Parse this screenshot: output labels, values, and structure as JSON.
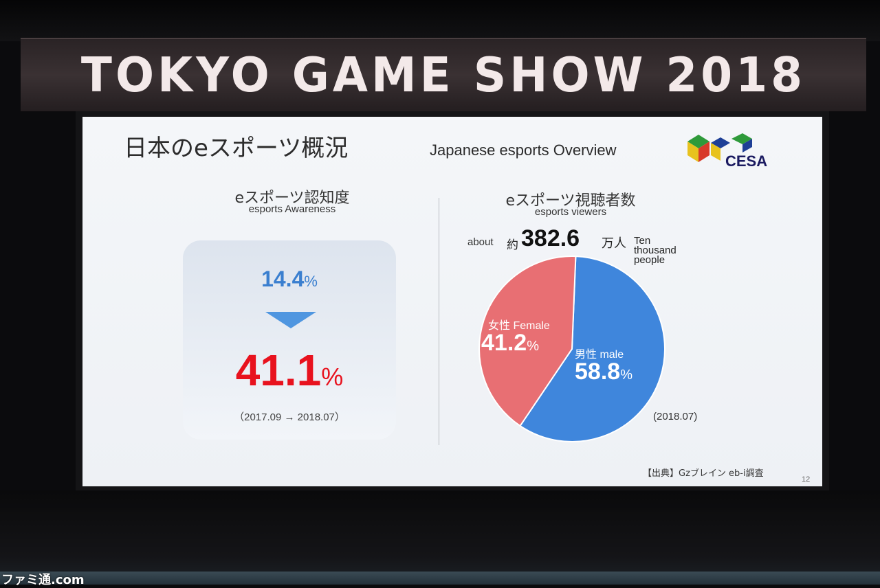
{
  "banner": {
    "text": "TOKYO GAME SHOW 2018"
  },
  "slide": {
    "title_jp": "日本のeスポーツ概況",
    "title_en": "Japanese esports Overview",
    "logo_text": "CESA",
    "awareness": {
      "title_jp": "eスポーツ認知度",
      "title_en": "esports Awareness",
      "before": "14.4",
      "after": "41.1",
      "unit": "%",
      "period": "（2017.09 → 2018.07）"
    },
    "viewers": {
      "title_jp": "eスポーツ視聴者数",
      "title_en": "esports viewers",
      "about": "about",
      "approx_jp": "約",
      "total": "382.6",
      "unit_jp": "万人",
      "unit_en": "Ten thousand people",
      "date": "(2018.07)",
      "female_label": "女性 Female",
      "male_label": "男性 male"
    },
    "source": "【出典】Gzブレイン eb-i調査",
    "page_number": "12"
  },
  "chart_data": {
    "type": "pie",
    "series": [
      {
        "name": "女性 Female",
        "value": 41.2,
        "color": "#e86f73"
      },
      {
        "name": "男性 male",
        "value": 58.8,
        "color": "#3f86dc"
      }
    ]
  },
  "watermark": "ファミ通.com"
}
